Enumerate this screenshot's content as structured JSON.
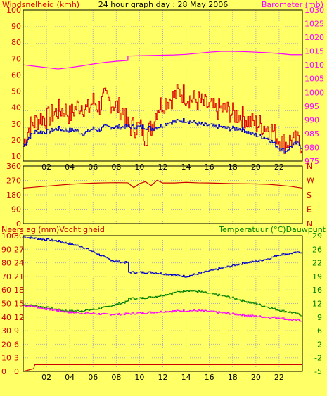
{
  "title": "24 hour graph day : 28 May 2006",
  "colors": {
    "background": "#ffff66",
    "wind_speed": "#dd0000",
    "wind_gust_blue": "#0000cc",
    "barometer": "#ff00ff",
    "humidity": "#0000cc",
    "temperature": "#008000",
    "dewpoint": "#ff00ff",
    "rain": "#cc0000",
    "direction": "#cc0000",
    "grid": "#b0b0b0",
    "frame": "#000000"
  },
  "chart_data": [
    {
      "type": "line",
      "id": "wind-barometer",
      "title": "24 hour graph day : 28 May 2006",
      "ylabel_left": "Windsnelheid (kmh)",
      "ylabel_right": "Barometer (mb)",
      "x_ticks": [
        "02",
        "04",
        "06",
        "08",
        "10",
        "12",
        "14",
        "16",
        "18",
        "20",
        "22"
      ],
      "y_left_ticks": [
        "100",
        "90",
        "80",
        "70",
        "60",
        "50",
        "40",
        "30",
        "20",
        "10"
      ],
      "y_right_ticks": [
        "1030",
        "1025",
        "1020",
        "1015",
        "1010",
        "1005",
        "1000",
        "995",
        "990",
        "985",
        "980",
        "975"
      ],
      "xlim": [
        0,
        24
      ],
      "ylim_left": [
        7,
        100
      ],
      "ylim_right": [
        975,
        1030
      ],
      "series": [
        {
          "key": "wind_speed",
          "axis": "left",
          "x": [
            0,
            0.5,
            1,
            1.5,
            2,
            2.5,
            3,
            3.5,
            4,
            4.5,
            5,
            5.5,
            6,
            6.5,
            7,
            7.5,
            8,
            8.5,
            9,
            10,
            10.5,
            11,
            11.5,
            12,
            12.5,
            13,
            13.5,
            14,
            14.5,
            15,
            15.5,
            16,
            16.5,
            17,
            17.5,
            18,
            18.5,
            19,
            19.5,
            20,
            20.5,
            21,
            21.5,
            22,
            22.5,
            23,
            23.5,
            24
          ],
          "values": [
            18,
            28,
            31,
            34,
            33,
            36,
            38,
            39,
            35,
            40,
            42,
            38,
            44,
            40,
            46,
            43,
            41,
            38,
            28,
            28,
            22,
            28,
            40,
            43,
            45,
            47,
            50,
            47,
            45,
            44,
            42,
            40,
            38,
            39,
            38,
            36,
            35,
            34,
            31,
            30,
            29,
            28,
            25,
            20,
            18,
            20,
            19,
            17
          ]
        },
        {
          "key": "wind_gust_blue",
          "axis": "left",
          "x": [
            0,
            0.5,
            1,
            1.5,
            2,
            2.5,
            3,
            3.5,
            4,
            4.5,
            5,
            5.5,
            6,
            6.5,
            7,
            7.5,
            8,
            8.5,
            9,
            10,
            10.5,
            11,
            11.5,
            12,
            12.5,
            13,
            13.5,
            14,
            14.5,
            15,
            15.5,
            16,
            16.5,
            17,
            17.5,
            18,
            18.5,
            19,
            19.5,
            20,
            20.5,
            21,
            21.5,
            22,
            22.5,
            23,
            23.5,
            24
          ],
          "values": [
            16,
            22,
            25,
            25,
            25,
            26,
            27,
            26,
            26,
            26,
            24,
            25,
            27,
            26,
            28,
            28,
            28,
            28,
            28,
            28,
            28,
            27,
            28,
            29,
            31,
            31,
            32,
            32,
            31,
            30,
            29,
            29,
            28,
            28,
            27,
            27,
            27,
            26,
            24,
            23,
            22,
            21,
            18,
            15,
            13,
            16,
            18,
            15
          ]
        },
        {
          "key": "barometer",
          "axis": "right",
          "x": [
            0,
            1,
            2,
            3,
            4,
            5,
            6,
            7,
            8,
            9,
            9,
            10,
            11,
            12,
            13,
            14,
            15,
            16,
            17,
            18,
            19,
            20,
            21,
            22,
            23,
            24
          ],
          "values": [
            1010,
            1009.5,
            1009,
            1008.5,
            1009,
            1009.6,
            1010.3,
            1010.9,
            1011.3,
            1011.6,
            1013.2,
            1013.3,
            1013.4,
            1013.5,
            1013.6,
            1013.8,
            1014.2,
            1014.6,
            1014.9,
            1014.9,
            1014.8,
            1014.6,
            1014.4,
            1014.1,
            1013.7,
            1013.7
          ]
        }
      ]
    },
    {
      "type": "line",
      "id": "wind-direction",
      "y_left_ticks": [
        "360",
        "270",
        "180",
        "90",
        "0"
      ],
      "y_right_ticks": [
        "N",
        "W",
        "S",
        "E",
        "N"
      ],
      "x_ticks": [
        "02",
        "04",
        "06",
        "08",
        "10",
        "12",
        "14",
        "16",
        "18",
        "20",
        "22"
      ],
      "xlim": [
        0,
        24
      ],
      "ylim": [
        0,
        360
      ],
      "series": [
        {
          "key": "direction",
          "x": [
            0,
            1,
            2,
            3,
            4,
            5,
            6,
            7,
            8,
            9,
            9.5,
            10,
            10.5,
            11,
            11.5,
            12,
            13,
            14,
            15,
            16,
            17,
            18,
            19,
            20,
            21,
            22,
            23,
            24
          ],
          "values": [
            222,
            228,
            234,
            240,
            246,
            250,
            253,
            255,
            256,
            255,
            225,
            250,
            262,
            238,
            270,
            254,
            254,
            258,
            255,
            254,
            252,
            250,
            249,
            248,
            246,
            240,
            233,
            222
          ]
        }
      ]
    },
    {
      "type": "line",
      "id": "rain-humidity-temperature",
      "ylabel_left": "Neerslag (mm)Vochtigheid",
      "ylabel_right": "Temperatuur (°C)Dauwpunt",
      "y_left_ticks_rain": [
        "30",
        "27",
        "24",
        "21",
        "18",
        "15",
        "12",
        "9",
        "6",
        "3",
        "0"
      ],
      "y_left_ticks_humidity": [
        "100",
        "90",
        "80",
        "70",
        "60",
        "50",
        "40",
        "30",
        "20",
        "10",
        "0"
      ],
      "y_right_ticks": [
        "29",
        "26",
        "22",
        "19",
        "16",
        "12",
        "9",
        "6",
        "2",
        "-2",
        "-5"
      ],
      "x_ticks": [
        "02",
        "04",
        "06",
        "08",
        "10",
        "12",
        "14",
        "16",
        "18",
        "20",
        "22"
      ],
      "xlim": [
        0,
        24
      ],
      "ylim_humidity": [
        0,
        100
      ],
      "ylim_temperature": [
        -5,
        29
      ],
      "series": [
        {
          "key": "humidity",
          "x": [
            0,
            1,
            2,
            3,
            4,
            5,
            6,
            7,
            7.5,
            8,
            9,
            9,
            10,
            11,
            12,
            13,
            14,
            15,
            16,
            17,
            18,
            19,
            20,
            21,
            22,
            23,
            24
          ],
          "values": [
            99,
            98,
            97,
            96,
            94,
            92,
            88,
            84,
            82,
            81,
            80,
            73,
            73,
            73,
            72,
            71,
            70,
            72,
            74,
            76,
            78,
            80,
            81,
            83,
            86,
            87,
            88
          ]
        },
        {
          "key": "temperature",
          "x": [
            0,
            1,
            2,
            3,
            4,
            5,
            6,
            7,
            8,
            9,
            9,
            10,
            11,
            12,
            13,
            14,
            15,
            16,
            17,
            18,
            19,
            20,
            21,
            22,
            23,
            24
          ],
          "values": [
            11.7,
            11.4,
            11.0,
            10.4,
            10.1,
            10.2,
            10.5,
            11.0,
            11.8,
            12.5,
            13.3,
            13.3,
            13.6,
            14.1,
            14.7,
            15.3,
            15.0,
            14.5,
            14.0,
            13.4,
            12.6,
            11.9,
            11.1,
            10.3,
            9.8,
            9.0
          ]
        },
        {
          "key": "dewpoint",
          "x": [
            0,
            1,
            2,
            3,
            4,
            5,
            6,
            7,
            8,
            9,
            10,
            11,
            12,
            13,
            14,
            15,
            16,
            17,
            18,
            19,
            20,
            21,
            22,
            23,
            24
          ],
          "values": [
            11.5,
            11.2,
            10.6,
            10.2,
            9.8,
            9.6,
            9.5,
            9.3,
            9.3,
            9.4,
            9.6,
            9.8,
            10.0,
            10.1,
            10.2,
            10.2,
            10.0,
            9.7,
            9.4,
            9.1,
            8.8,
            8.6,
            8.4,
            7.9,
            7.7
          ]
        },
        {
          "key": "rain",
          "x": [
            0,
            0.3,
            0.9,
            1.0,
            24
          ],
          "values": [
            0,
            0.2,
            0.6,
            1.5,
            1.5
          ]
        }
      ]
    }
  ]
}
